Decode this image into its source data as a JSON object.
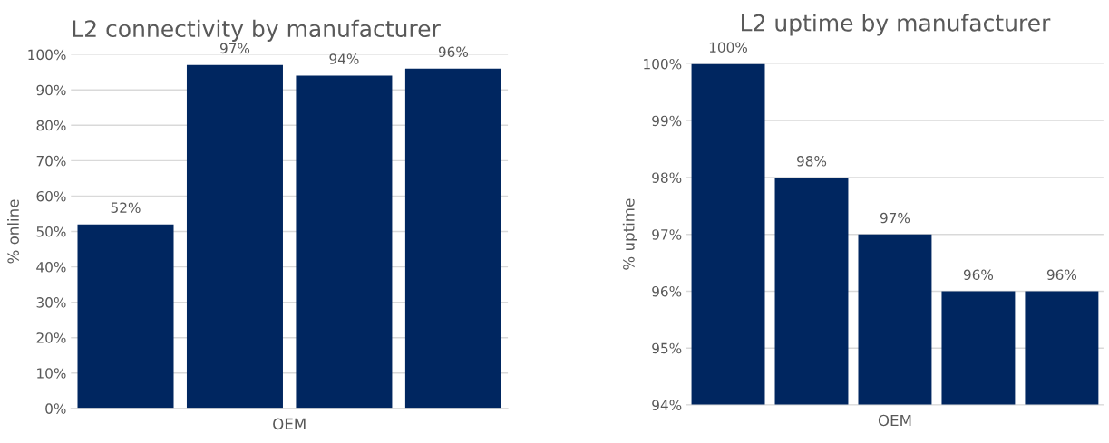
{
  "chart_data": [
    {
      "type": "bar",
      "title": "L2 connectivity by manufacturer",
      "xlabel": "OEM",
      "ylabel": "% online",
      "categories": [
        null,
        null,
        null,
        null
      ],
      "values": [
        52,
        97,
        94,
        96
      ],
      "color": "#002660",
      "value_labels": [
        "52%",
        "97%",
        "94%",
        "96%"
      ],
      "ylim": [
        0,
        100
      ],
      "yticks": [
        {
          "value": 0,
          "label": "0%"
        },
        {
          "value": 10,
          "label": "10%"
        },
        {
          "value": 20,
          "label": "20%"
        },
        {
          "value": 30,
          "label": "30%"
        },
        {
          "value": 40,
          "label": "40%"
        },
        {
          "value": 50,
          "label": "50%"
        },
        {
          "value": 60,
          "label": "60%"
        },
        {
          "value": 70,
          "label": "70%"
        },
        {
          "value": 80,
          "label": "80%"
        },
        {
          "value": 90,
          "label": "90%"
        },
        {
          "value": 100,
          "label": "100%"
        }
      ],
      "grid": "y",
      "legend": false
    },
    {
      "type": "bar",
      "title": "L2 uptime by manufacturer",
      "xlabel": "OEM",
      "ylabel": "% uptime",
      "categories": [
        null,
        null,
        null,
        null,
        null
      ],
      "values": [
        100,
        98,
        97,
        96,
        96
      ],
      "color": "#002660",
      "value_labels": [
        "100%",
        "98%",
        "97%",
        "96%",
        "96%"
      ],
      "ylim": [
        94,
        100
      ],
      "yticks": [
        {
          "value": 94,
          "label": "94%"
        },
        {
          "value": 95,
          "label": "95%"
        },
        {
          "value": 96,
          "label": "96%"
        },
        {
          "value": 97,
          "label": "97%"
        },
        {
          "value": 98,
          "label": "98%"
        },
        {
          "value": 99,
          "label": "99%"
        },
        {
          "value": 100,
          "label": "100%"
        }
      ],
      "grid": "y",
      "legend": false
    }
  ]
}
